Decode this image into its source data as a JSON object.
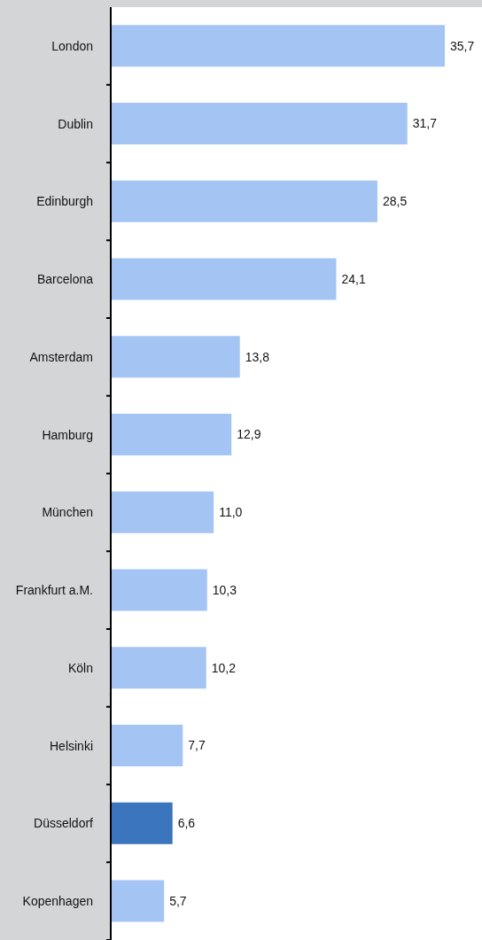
{
  "chart_data": {
    "type": "bar",
    "orientation": "horizontal",
    "categories": [
      "London",
      "Dublin",
      "Edinburgh",
      "Barcelona",
      "Amsterdam",
      "Hamburg",
      "München",
      "Frankfurt a.M.",
      "Köln",
      "Helsinki",
      "Düsseldorf",
      "Kopenhagen"
    ],
    "values": [
      35.7,
      31.7,
      28.5,
      24.1,
      13.8,
      12.9,
      11.0,
      10.3,
      10.2,
      7.7,
      6.6,
      5.7
    ],
    "colors": [
      "#a4c4f4",
      "#a4c4f4",
      "#a4c4f4",
      "#a4c4f4",
      "#a4c4f4",
      "#a4c4f4",
      "#a4c4f4",
      "#a4c4f4",
      "#a4c4f4",
      "#a4c4f4",
      "#3a75bd",
      "#a4c4f4"
    ],
    "value_labels": [
      "35,7",
      "31,7",
      "28,5",
      "24,1",
      "13,8",
      "12,9",
      "11,0",
      "10,3",
      "10,2",
      "7,7",
      "6,6",
      "5,7"
    ]
  }
}
